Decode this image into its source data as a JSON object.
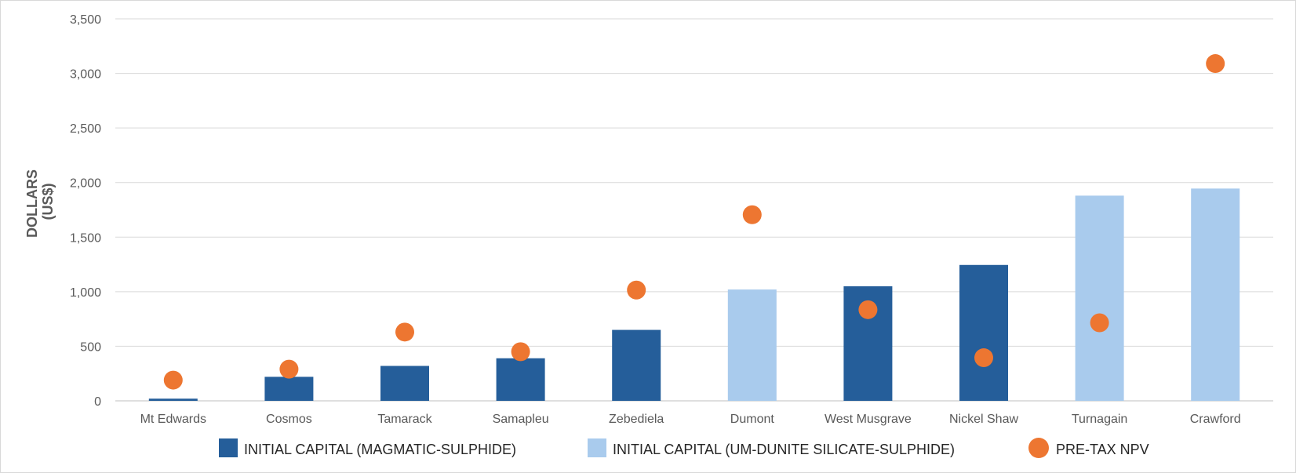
{
  "chart_data": {
    "type": "bar",
    "title": "",
    "xlabel": "",
    "ylabel_lines": [
      "DOLLARS",
      "(US$)"
    ],
    "ylim": [
      0,
      3500
    ],
    "yticks": [
      0,
      500,
      1000,
      1500,
      2000,
      2500,
      3000,
      3500
    ],
    "ytick_labels": [
      "0",
      "500",
      "1,000",
      "1,500",
      "2,000",
      "2,500",
      "3,000",
      "3,500"
    ],
    "grid": true,
    "legend_position": "bottom",
    "categories": [
      "Mt Edwards",
      "Cosmos",
      "Tamarack",
      "Samapleu",
      "Zebediela",
      "Dumont",
      "West Musgrave",
      "Nickel Shaw",
      "Turnagain",
      "Crawford"
    ],
    "series": [
      {
        "name": "INITIAL CAPITAL (MAGMATIC-SULPHIDE)",
        "kind": "bar",
        "color": "#255e9a",
        "values": [
          20,
          220,
          320,
          390,
          650,
          null,
          1050,
          1245,
          null,
          null
        ]
      },
      {
        "name": "INITIAL CAPITAL (UM-DUNITE SILICATE-SULPHIDE)",
        "kind": "bar",
        "color": "#a9cbed",
        "values": [
          null,
          null,
          null,
          null,
          null,
          1020,
          null,
          null,
          1880,
          1945
        ]
      },
      {
        "name": "PRE-TAX NPV",
        "kind": "scatter",
        "color": "#ed7631",
        "values": [
          190,
          290,
          630,
          450,
          1015,
          1705,
          835,
          395,
          715,
          3090
        ]
      }
    ]
  }
}
